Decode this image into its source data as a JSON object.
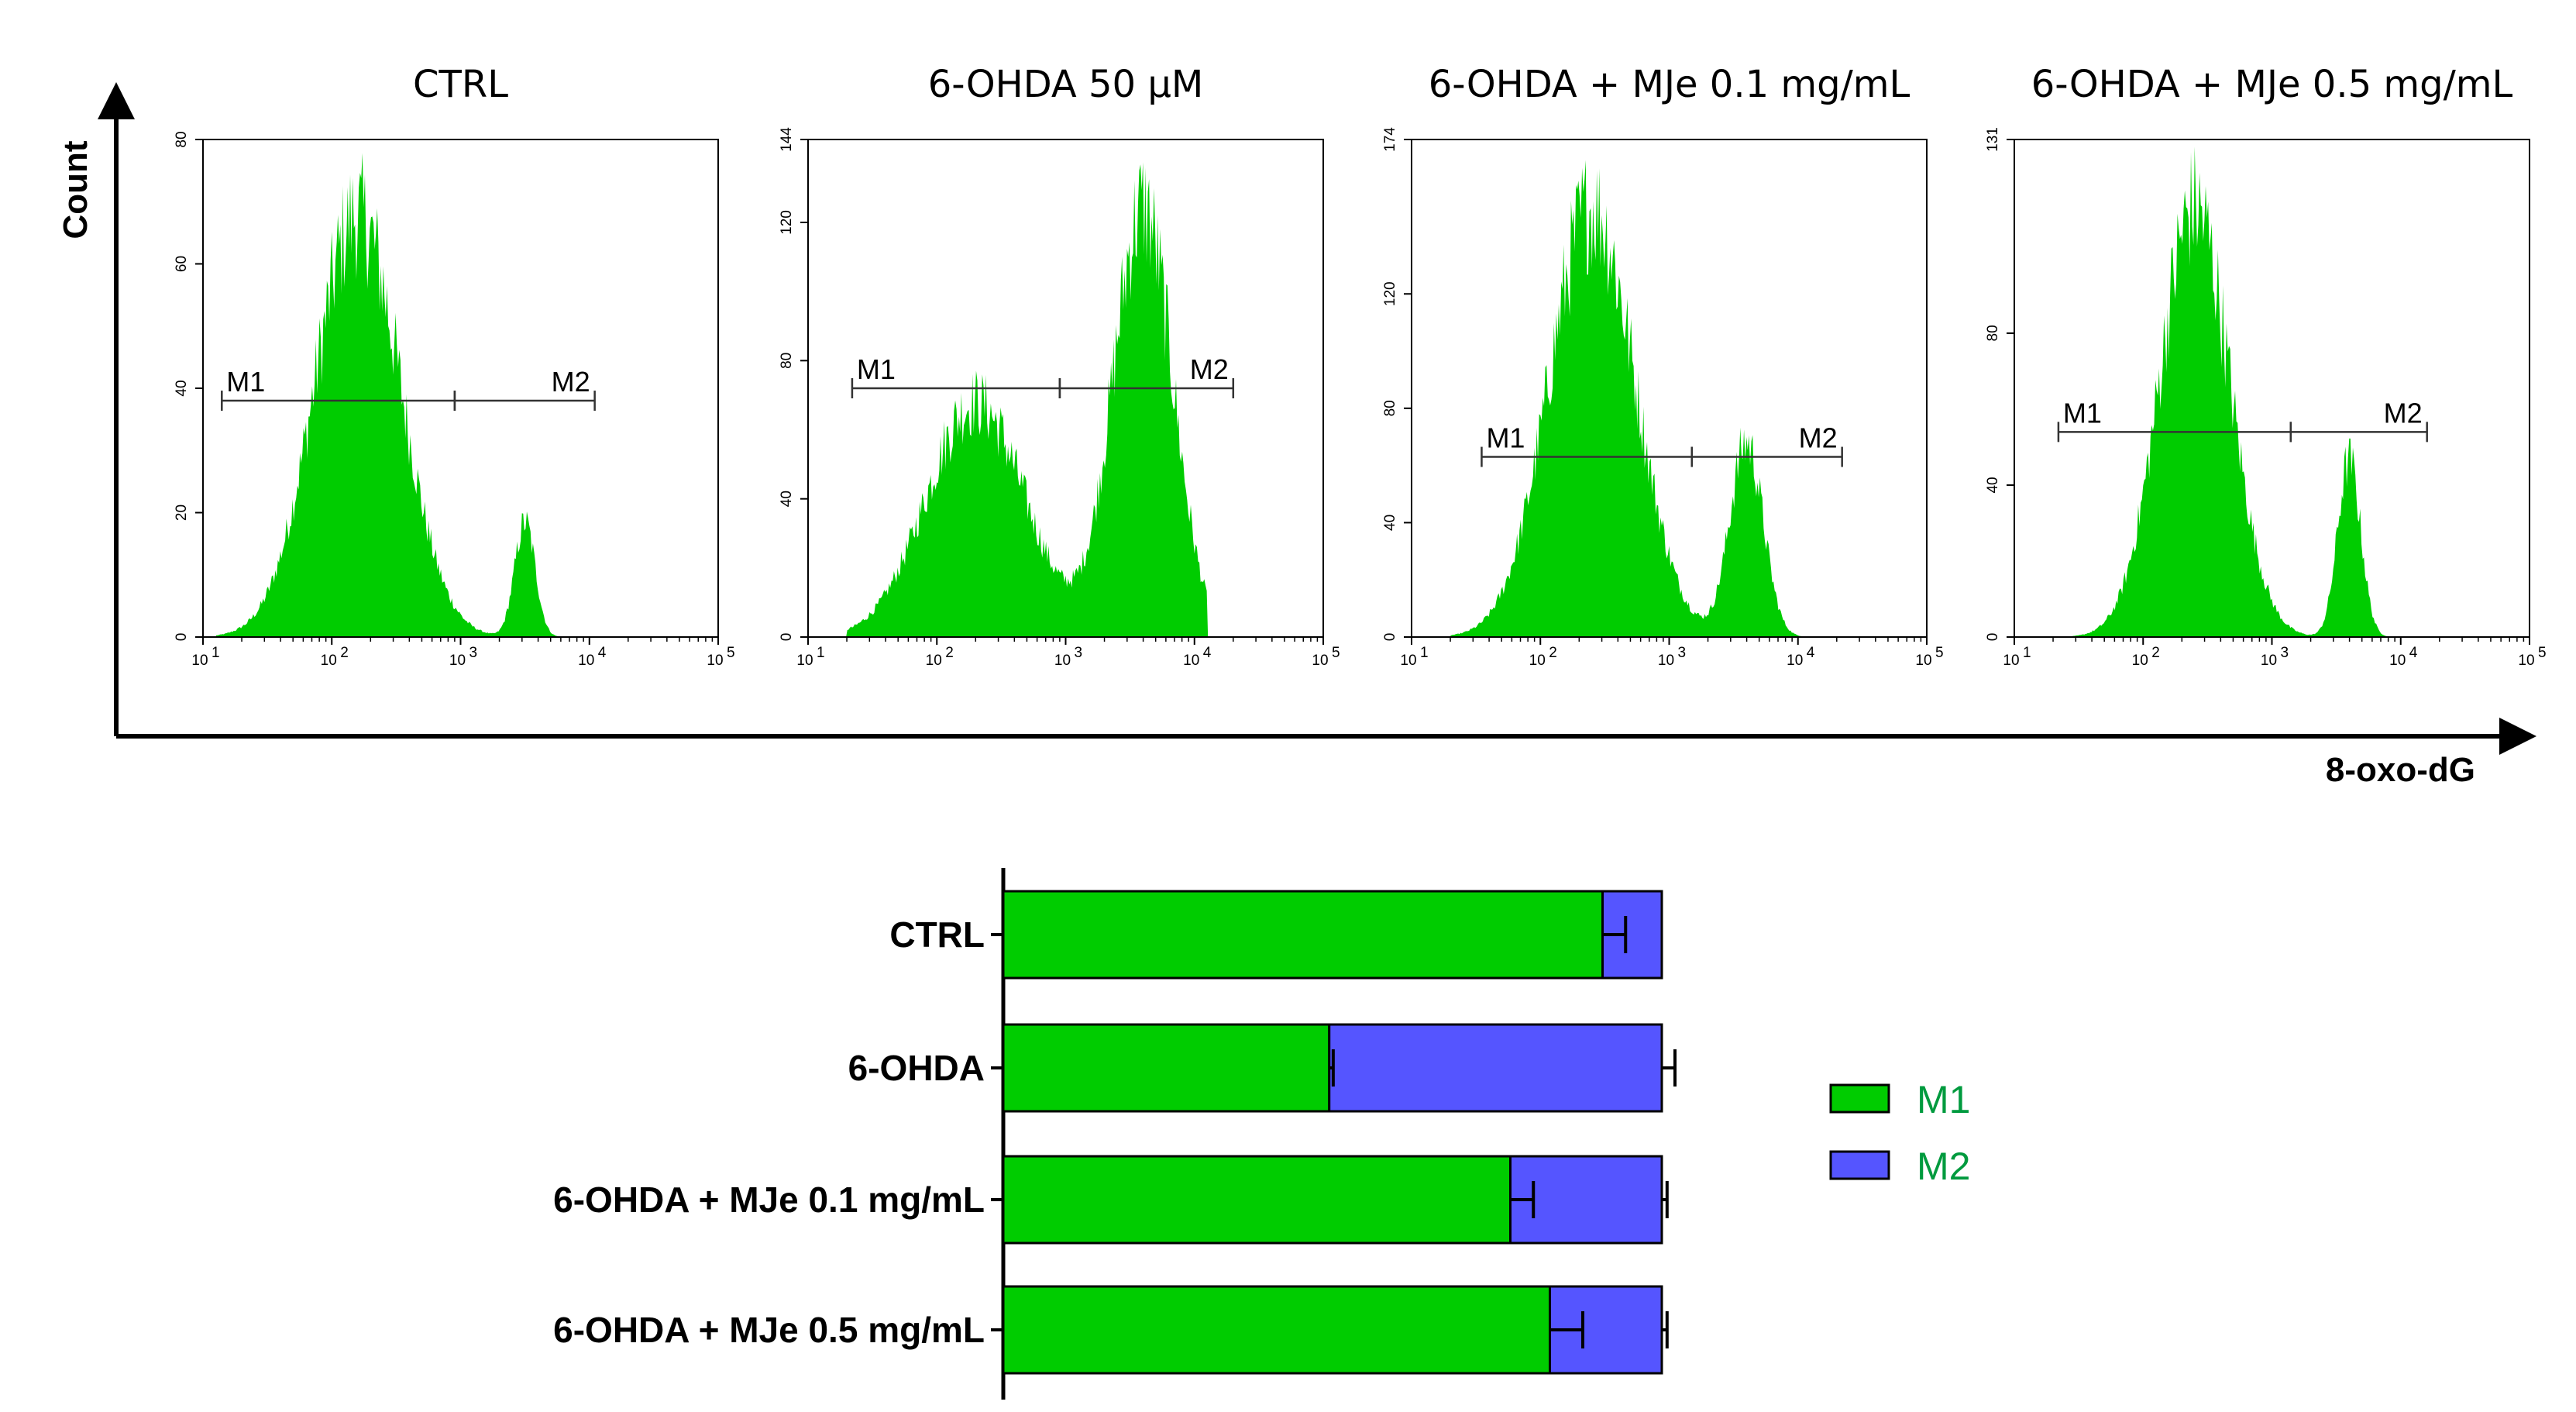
{
  "chart_data": [
    {
      "type": "histogram",
      "x_axis": {
        "label": "8-oxo-dG",
        "scale": "log",
        "range": [
          10,
          100000
        ],
        "ticks": [
          "10",
          "100",
          "1000",
          "10000",
          "100000"
        ]
      },
      "y_axis": {
        "label": "Count"
      },
      "fill_color": "#00cc00",
      "panels": [
        {
          "title": "CTRL",
          "ymax": 80,
          "yticks": [
            0,
            20,
            40,
            60,
            80
          ],
          "peaks": [
            {
              "center_log": 2.2,
              "width_log": 0.33,
              "height": 70
            },
            {
              "center_log": 3.5,
              "width_log": 0.08,
              "height": 19
            }
          ],
          "range_log": [
            1.1,
            3.9
          ],
          "gates": [
            {
              "label": "M1",
              "from": 14,
              "to": 900,
              "y": 38
            },
            {
              "label": "M2",
              "from": 900,
              "to": 11000,
              "y": 38
            }
          ]
        },
        {
          "title": "6-OHDA 50 µM",
          "ymax": 144,
          "yticks": [
            0,
            40,
            80,
            120,
            144
          ],
          "peaks": [
            {
              "center_log": 2.3,
              "width_log": 0.38,
              "height": 70
            },
            {
              "center_log": 3.6,
              "width_log": 0.23,
              "height": 128
            }
          ],
          "range_log": [
            1.3,
            4.1
          ],
          "gates": [
            {
              "label": "M1",
              "from": 22,
              "to": 900,
              "y": 72
            },
            {
              "label": "M2",
              "from": 900,
              "to": 20000,
              "y": 72
            }
          ]
        },
        {
          "title": "6-OHDA + MJe 0.1 mg/mL",
          "ymax": 174,
          "yticks": [
            0,
            40,
            80,
            120,
            174
          ],
          "peaks": [
            {
              "center_log": 2.4,
              "width_log": 0.33,
              "height": 155
            },
            {
              "center_log": 3.6,
              "width_log": 0.13,
              "height": 70
            }
          ],
          "range_log": [
            1.3,
            4.1
          ],
          "gates": [
            {
              "label": "M1",
              "from": 35,
              "to": 1500,
              "y": 63
            },
            {
              "label": "M2",
              "from": 1500,
              "to": 22000,
              "y": 63
            }
          ]
        },
        {
          "title": "6-OHDA + MJe 0.5 mg/mL",
          "ymax": 131,
          "yticks": [
            0,
            40,
            80,
            131
          ],
          "peaks": [
            {
              "center_log": 2.4,
              "width_log": 0.27,
              "height": 117
            },
            {
              "center_log": 3.6,
              "width_log": 0.09,
              "height": 48
            }
          ],
          "range_log": [
            1.3,
            4.0
          ],
          "gates": [
            {
              "label": "M1",
              "from": 22,
              "to": 1400,
              "y": 54
            },
            {
              "label": "M2",
              "from": 1400,
              "to": 16000,
              "y": 54
            }
          ]
        }
      ]
    },
    {
      "type": "stacked-bar-horizontal",
      "categories": [
        "CTRL",
        "6-OHDA",
        "6-OHDA + MJe 0.1 mg/mL",
        "6-OHDA + MJe 0.5 mg/mL"
      ],
      "series": [
        {
          "name": "M1",
          "color": "#00cc00",
          "values": [
            91,
            49.5,
            77,
            83
          ]
        },
        {
          "name": "M2",
          "color": "#5555ff",
          "values": [
            9,
            50.5,
            23,
            17
          ]
        }
      ],
      "errors": [
        {
          "m1": 3.5,
          "total": 0
        },
        {
          "m1": 0.6,
          "total": 2
        },
        {
          "m1": 3.5,
          "total": 0.8
        },
        {
          "m1": 5,
          "total": 0.8
        }
      ],
      "xlim": [
        0,
        100
      ],
      "legend": {
        "placement": "right",
        "items": [
          "M1",
          "M2"
        ]
      }
    }
  ]
}
